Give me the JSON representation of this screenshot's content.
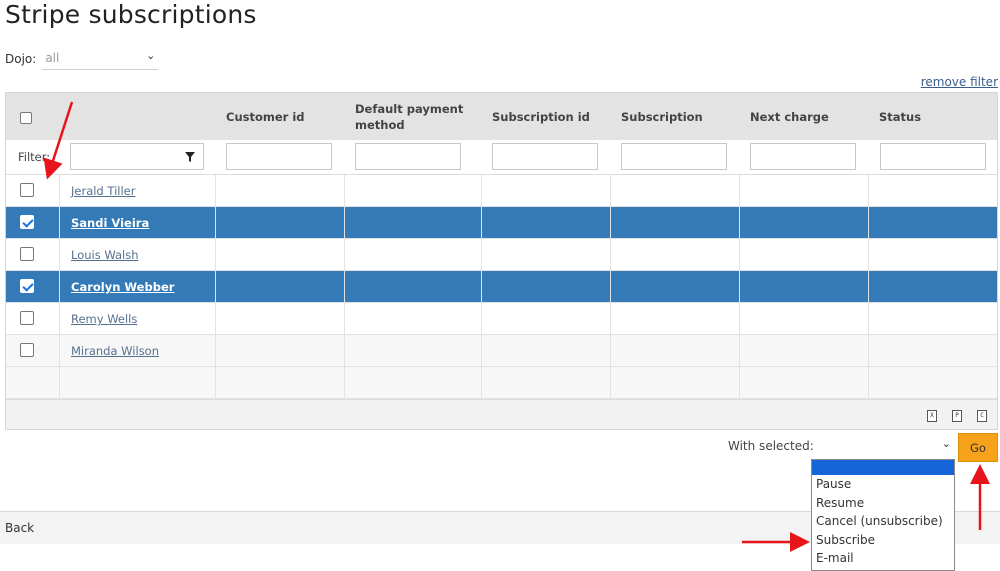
{
  "page": {
    "title": "Stripe subscriptions"
  },
  "dojo": {
    "label": "Dojo:",
    "value": "all"
  },
  "remove_filter": "remove filter",
  "grid": {
    "columns": [
      "Customer id",
      "Default payment method",
      "Subscription id",
      "Subscription",
      "Next charge",
      "Status"
    ],
    "filter_label": "Filter:",
    "rows": [
      {
        "name": "Jerald Tiller",
        "checked": false
      },
      {
        "name": "Sandi Vieira",
        "checked": true
      },
      {
        "name": "Louis Walsh",
        "checked": false
      },
      {
        "name": "Carolyn Webber",
        "checked": true
      },
      {
        "name": "Remy Wells",
        "checked": false
      },
      {
        "name": "Miranda Wilson",
        "checked": false
      }
    ],
    "export_icons": [
      {
        "name": "excel-export-icon",
        "glyph": "X"
      },
      {
        "name": "pdf-export-icon",
        "glyph": "P"
      },
      {
        "name": "csv-export-icon",
        "glyph": "C"
      }
    ]
  },
  "with_selected": {
    "label": "With selected:",
    "value": "",
    "go_label": "Go",
    "options": [
      "",
      "Pause",
      "Resume",
      "Cancel (unsubscribe)",
      "Subscribe",
      "E-mail"
    ]
  },
  "footer": {
    "back_label": "Back"
  },
  "colors": {
    "selected_row": "#337ab7",
    "go_button": "#f7a21b",
    "annotation_arrow": "#e8141b"
  }
}
